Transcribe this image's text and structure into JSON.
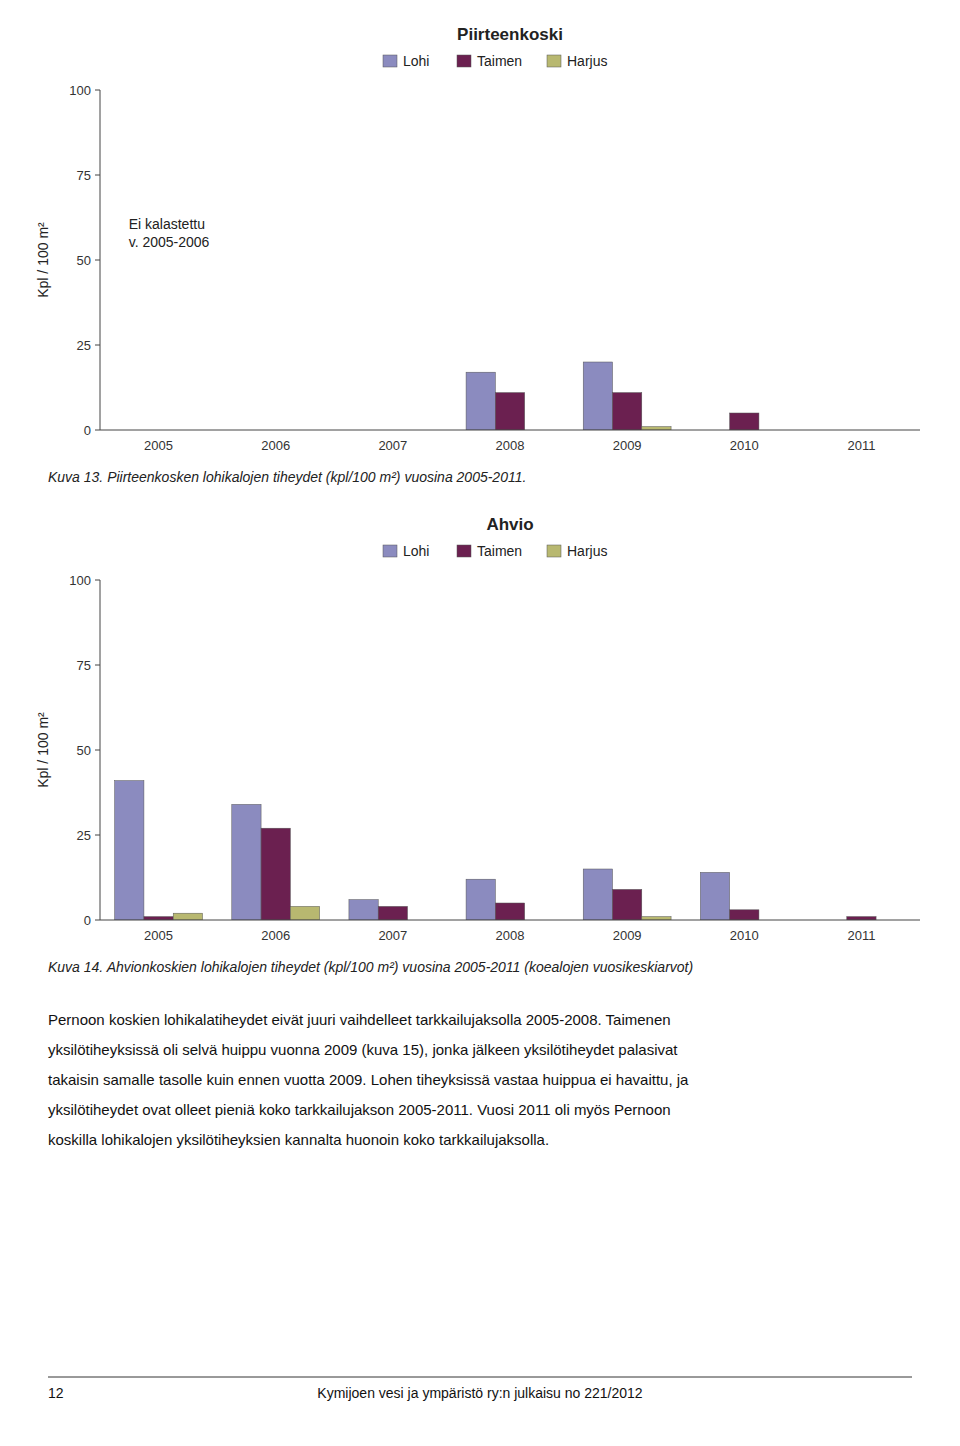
{
  "chart_data": [
    {
      "type": "bar",
      "title": "Piirteenkoski",
      "categories": [
        "2005",
        "2006",
        "2007",
        "2008",
        "2009",
        "2010",
        "2011"
      ],
      "series": [
        {
          "name": "Lohi",
          "color": "#8B8BBF",
          "values": [
            0,
            0,
            0,
            17,
            20,
            0,
            0
          ]
        },
        {
          "name": "Taimen",
          "color": "#6B2050",
          "values": [
            0,
            0,
            0,
            11,
            11,
            5,
            0
          ]
        },
        {
          "name": "Harjus",
          "color": "#B8B870",
          "values": [
            0,
            0,
            0,
            0,
            1,
            0,
            0
          ]
        }
      ],
      "ylabel": "Kpl / 100 m²",
      "ylim": [
        0,
        100
      ],
      "yticks": [
        0,
        25,
        50,
        75,
        100
      ],
      "grid": false,
      "legend": "top",
      "annotation": "Ei kalastettu\nv. 2005-2006",
      "caption": "Kuva 13. Piirteenkosken lohikalojen tiheydet (kpl/100 m²) vuosina 2005-2011."
    },
    {
      "type": "bar",
      "title": "Ahvio",
      "categories": [
        "2005",
        "2006",
        "2007",
        "2008",
        "2009",
        "2010",
        "2011"
      ],
      "series": [
        {
          "name": "Lohi",
          "color": "#8B8BBF",
          "values": [
            41,
            34,
            6,
            12,
            15,
            14,
            0
          ]
        },
        {
          "name": "Taimen",
          "color": "#6B2050",
          "values": [
            1,
            27,
            4,
            5,
            9,
            3,
            1
          ]
        },
        {
          "name": "Harjus",
          "color": "#B8B870",
          "values": [
            2,
            4,
            0,
            0,
            1,
            0,
            0
          ]
        }
      ],
      "ylabel": "Kpl / 100 m²",
      "ylim": [
        0,
        100
      ],
      "yticks": [
        0,
        25,
        50,
        75,
        100
      ],
      "grid": false,
      "legend": "top",
      "caption": "Kuva 14. Ahvionkoskien lohikalojen tiheydet (kpl/100 m²) vuosina 2005-2011 (koealojen vuosikeskiarvot)"
    }
  ],
  "body_text": [
    "Pernoon koskien lohikalatiheydet eivät juuri vaihdelleet tarkkailujaksolla 2005-2008. Taimenen",
    "yksilötiheyksissä oli selvä huippu vuonna 2009 (kuva 15), jonka jälkeen yksilötiheydet palasivat",
    "takaisin samalle tasolle kuin ennen vuotta 2009. Lohen tiheyksissä vastaa huippua ei havaittu, ja",
    "yksilötiheydet ovat olleet pieniä koko tarkkailujakson 2005-2011. Vuosi 2011 oli myös Pernoon",
    "koskilla lohikalojen yksilötiheyksien kannalta huonoin koko tarkkailujaksolla."
  ],
  "page_number": "12",
  "footer_text": "Kymijoen vesi ja ympäristö ry:n julkaisu no 221/2012"
}
